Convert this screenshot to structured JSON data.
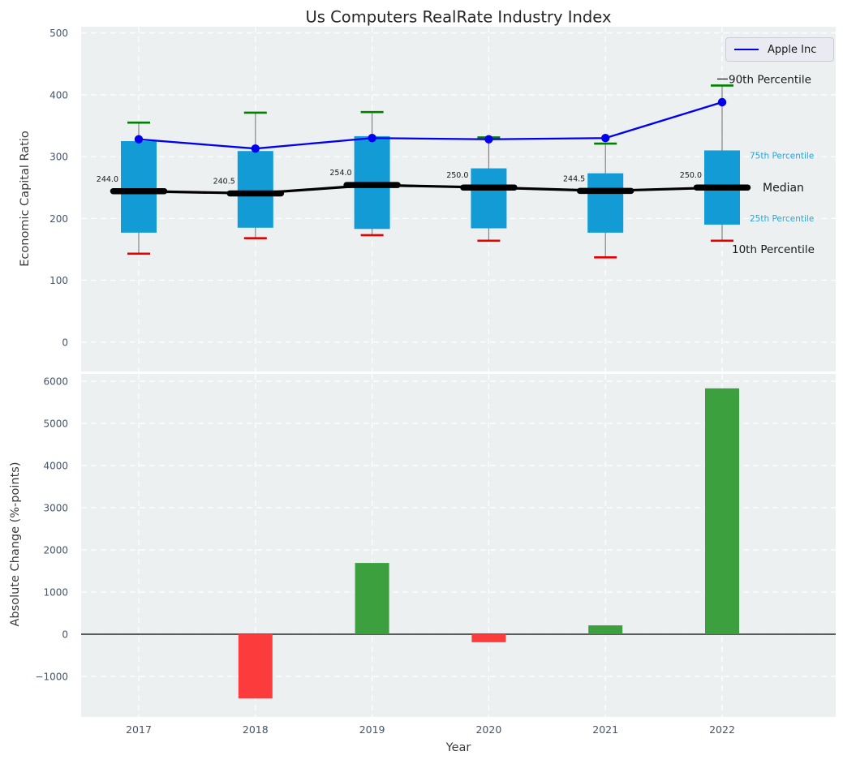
{
  "title": "Us Computers RealRate Industry Index",
  "legend": {
    "label": "Apple Inc"
  },
  "top_axis": {
    "ylabel": "Economic Capital Ratio",
    "yticks": [
      0,
      100,
      200,
      300,
      400,
      500
    ],
    "ylim": [
      -47.5,
      510
    ]
  },
  "bottom_axis": {
    "ylabel": "Absolute Change (%-points)",
    "xlabel": "Year",
    "yticks": [
      -1000,
      0,
      1000,
      2000,
      3000,
      4000,
      5000,
      6000
    ],
    "ylim": [
      -1962,
      6173
    ]
  },
  "right_labels": [
    {
      "key": "p90",
      "text": "90th Percentile",
      "style": "dark"
    },
    {
      "key": "p75",
      "text": "75th Percentile",
      "style": "blue"
    },
    {
      "key": "median",
      "text": "Median",
      "style": "dark"
    },
    {
      "key": "p25",
      "text": "25th Percentile",
      "style": "blue"
    },
    {
      "key": "p10",
      "text": "10th Percentile",
      "style": "dark"
    }
  ],
  "colors": {
    "panel_bg": "#ecf0f1",
    "grid": "#ffffff",
    "box_fill": "#129bd5",
    "whisker": "#7a7a7a",
    "p90_tick": "#008000",
    "p10_tick": "#e60000",
    "apple_line": "#0000ee",
    "median_line": "#000000",
    "bar_positive": "#3ca03e",
    "bar_negative": "#fc3c3c",
    "tick_label": "#445469",
    "pct_label": "#29a3d9",
    "annotation": "#1a1a1a",
    "zero_line": "#000000"
  },
  "chart_data": [
    {
      "type": "box-percentile-line",
      "panel": "top",
      "title": "Us Computers RealRate Industry Index",
      "ylabel": "Economic Capital Ratio",
      "categories": [
        2017,
        2018,
        2019,
        2020,
        2021,
        2022
      ],
      "series": [
        {
          "name": "90th Percentile",
          "values": [
            355,
            371,
            372,
            331,
            321,
            415
          ]
        },
        {
          "name": "75th Percentile",
          "values": [
            325,
            309,
            333,
            281,
            273,
            310
          ]
        },
        {
          "name": "Median",
          "values": [
            244.0,
            240.5,
            254.0,
            250.0,
            244.5,
            250.0
          ]
        },
        {
          "name": "25th Percentile",
          "values": [
            177,
            185,
            183,
            184,
            177,
            190
          ]
        },
        {
          "name": "10th Percentile",
          "values": [
            143,
            168,
            173,
            164,
            137,
            164
          ]
        },
        {
          "name": "Apple Inc",
          "values": [
            328,
            313,
            330,
            328,
            330,
            388
          ]
        }
      ],
      "median_labels": [
        "244.0",
        "240.5",
        "254.0",
        "250.0",
        "244.5",
        "250.0"
      ],
      "legend_position": "upper right",
      "grid": "dashed-white"
    },
    {
      "type": "bar",
      "panel": "bottom",
      "ylabel": "Absolute Change (%-points)",
      "xlabel": "Year",
      "categories": [
        2017,
        2018,
        2019,
        2020,
        2021,
        2022
      ],
      "values": [
        0,
        -1520,
        1690,
        -190,
        210,
        5830
      ],
      "grid": "dashed-white"
    }
  ]
}
